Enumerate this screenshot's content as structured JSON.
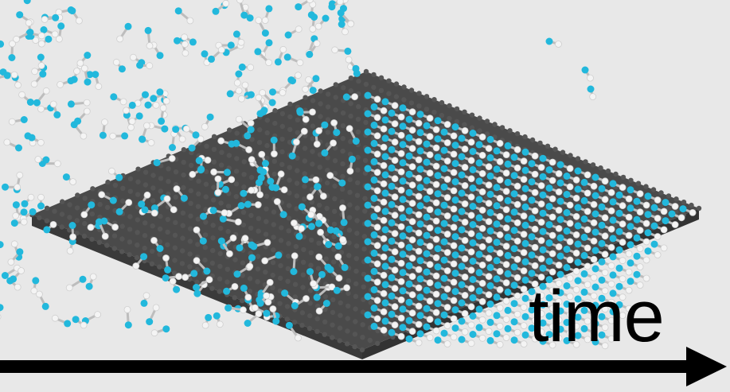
{
  "label": {
    "time": "time"
  },
  "colors": {
    "background": "#e8e8e8",
    "substrate": "#4a4a4a",
    "substrate_edge": "#3a3a3a",
    "atom_cyan": "#22b8dc",
    "atom_white": "#f4f4f4",
    "bond": "#bdbdbd",
    "arrow": "#000000"
  },
  "icons": {
    "arrow": "arrow-right-icon"
  }
}
